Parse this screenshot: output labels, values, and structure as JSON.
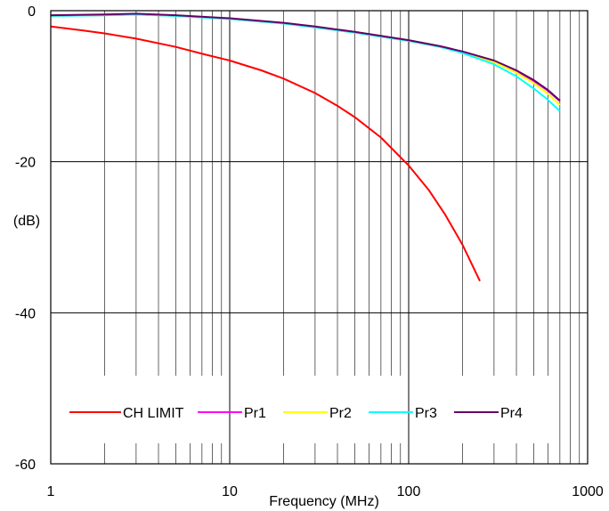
{
  "chart_data": {
    "type": "line",
    "title": "",
    "xlabel": "Frequency (MHz)",
    "ylabel": "(dB)",
    "x_scale": "log",
    "xlim": [
      1,
      1000
    ],
    "ylim": [
      -60,
      0
    ],
    "x_ticks": [
      1,
      10,
      100,
      1000
    ],
    "x_tick_labels": [
      "1",
      "10",
      "100",
      "1000"
    ],
    "y_ticks": [
      0,
      -20,
      -40,
      -60
    ],
    "y_tick_labels": [
      "0",
      "-20",
      "-40",
      "-60"
    ],
    "grid": true,
    "legend_position": "bottom",
    "series": [
      {
        "name": "CH LIMIT",
        "color": "#ff0000",
        "x": [
          1,
          1.5,
          2,
          3,
          5,
          7,
          10,
          15,
          20,
          30,
          40,
          50,
          70,
          100,
          130,
          160,
          200,
          250
        ],
        "y": [
          -2.1,
          -2.6,
          -3.0,
          -3.7,
          -4.8,
          -5.7,
          -6.6,
          -7.9,
          -9.0,
          -10.9,
          -12.6,
          -14.1,
          -16.8,
          -20.5,
          -23.8,
          -27.0,
          -31.0,
          -35.8
        ]
      },
      {
        "name": "Pr1",
        "color": "#ff00ff",
        "x": [
          1,
          2,
          3,
          5,
          10,
          20,
          30,
          50,
          100,
          150,
          200,
          300,
          400,
          500,
          600,
          700
        ],
        "y": [
          -0.7,
          -0.6,
          -0.5,
          -0.7,
          -1.1,
          -1.7,
          -2.2,
          -2.9,
          -4.0,
          -4.8,
          -5.5,
          -6.7,
          -8.0,
          -9.3,
          -10.6,
          -12.0
        ]
      },
      {
        "name": "Pr2",
        "color": "#ffff00",
        "x": [
          1,
          2,
          3,
          5,
          10,
          20,
          30,
          50,
          100,
          150,
          200,
          300,
          400,
          500,
          600,
          700
        ],
        "y": [
          -0.7,
          -0.6,
          -0.5,
          -0.7,
          -1.1,
          -1.7,
          -2.2,
          -2.9,
          -4.0,
          -4.8,
          -5.5,
          -6.8,
          -8.2,
          -9.6,
          -11.0,
          -12.5
        ]
      },
      {
        "name": "Pr3",
        "color": "#00ffff",
        "x": [
          1,
          2,
          3,
          5,
          10,
          20,
          30,
          50,
          100,
          150,
          200,
          300,
          400,
          500,
          600,
          700
        ],
        "y": [
          -0.7,
          -0.6,
          -0.5,
          -0.7,
          -1.1,
          -1.7,
          -2.2,
          -2.9,
          -4.0,
          -4.8,
          -5.6,
          -7.1,
          -8.7,
          -10.3,
          -11.8,
          -13.3
        ]
      },
      {
        "name": "Pr4",
        "color": "#660066",
        "x": [
          1,
          2,
          3,
          5,
          10,
          20,
          30,
          50,
          100,
          150,
          200,
          300,
          400,
          500,
          600,
          700
        ],
        "y": [
          -0.6,
          -0.5,
          -0.4,
          -0.6,
          -1.0,
          -1.6,
          -2.1,
          -2.8,
          -3.9,
          -4.7,
          -5.4,
          -6.6,
          -7.9,
          -9.2,
          -10.5,
          -11.9
        ]
      }
    ]
  }
}
